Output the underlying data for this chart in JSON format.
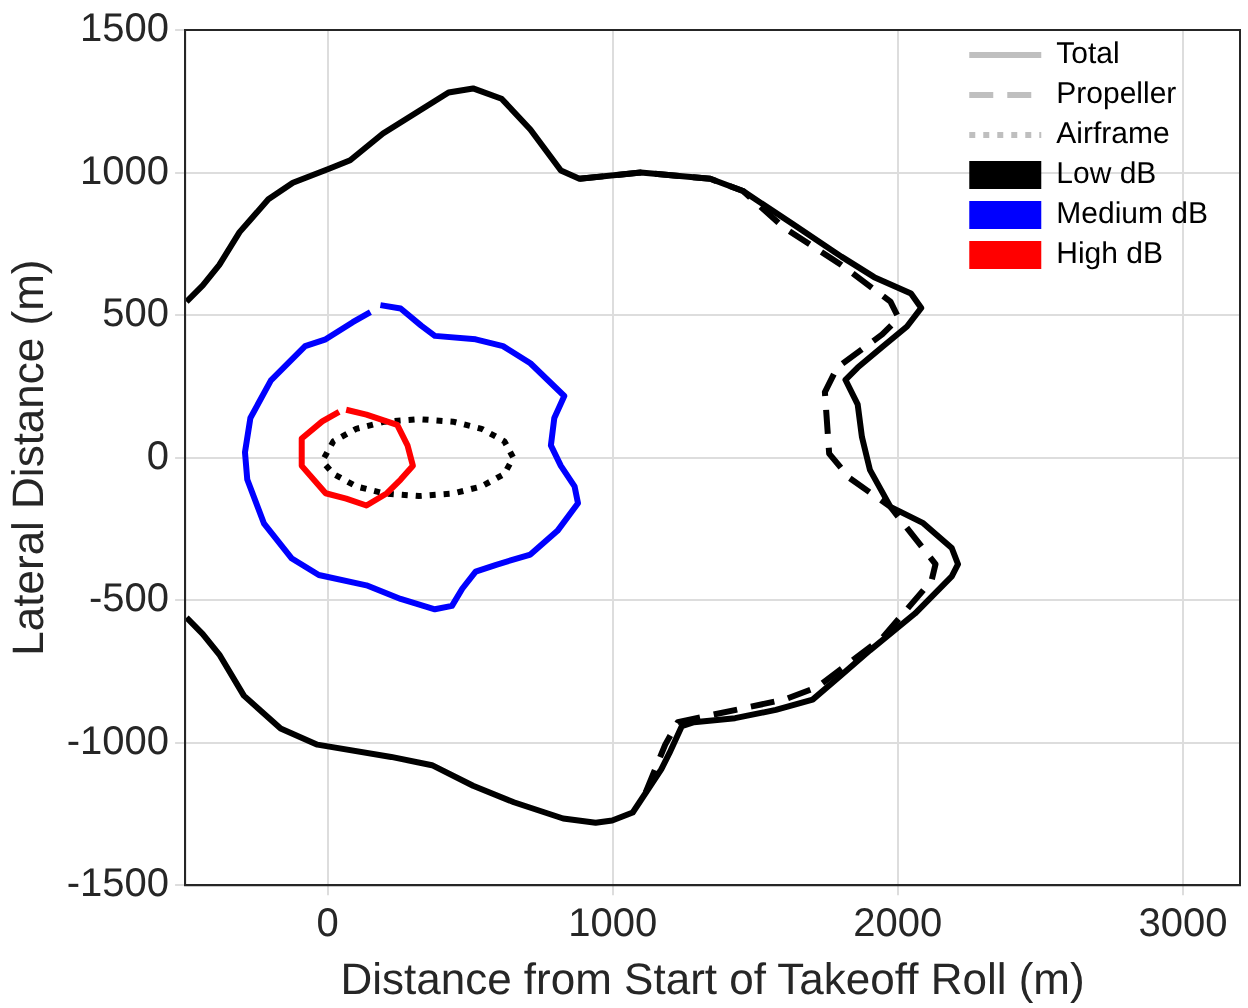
{
  "chart_data": {
    "type": "line",
    "xlabel": "Distance from Start of Takeoff Roll (m)",
    "ylabel": "Lateral Distance (m)",
    "xlim": [
      -500,
      3200
    ],
    "xticks": [
      0,
      1000,
      2000,
      3000
    ],
    "ylim": [
      -1500,
      1500
    ],
    "yticks": [
      -1500,
      -1000,
      -500,
      0,
      500,
      1000,
      1500
    ],
    "grid": true,
    "legend": "top right",
    "series": [
      {
        "color": "#000000",
        "line_style": "solid",
        "x": [
          -495,
          -438,
          -380,
          -309,
          -208,
          -122,
          7,
          79,
          194,
          309,
          424,
          510,
          610,
          711,
          818,
          883,
          1098,
          1342,
          1457,
          1630,
          1802,
          1917,
          2046,
          2082,
          2032,
          1945,
          1859,
          1816,
          1859,
          1874,
          1902,
          1974,
          2089,
          2189,
          2211,
          2189,
          2060,
          1902,
          1802,
          1701,
          1572,
          1429,
          1285,
          1242,
          1199,
          1170,
          1113,
          1070,
          998,
          940,
          826,
          653,
          510,
          366,
          223,
          -36,
          -165,
          -294,
          -380,
          -438,
          -495
        ],
        "values": [
          547,
          604,
          676,
          791,
          906,
          964,
          1014,
          1043,
          1137,
          1209,
          1281,
          1295,
          1259,
          1151,
          1007,
          978,
          1000,
          978,
          935,
          820,
          705,
          633,
          576,
          525,
          460,
          388,
          316,
          273,
          187,
          72,
          -43,
          -173,
          -230,
          -317,
          -374,
          -417,
          -547,
          -676,
          -763,
          -849,
          -885,
          -914,
          -928,
          -942,
          -1036,
          -1094,
          -1180,
          -1245,
          -1273,
          -1281,
          -1266,
          -1209,
          -1151,
          -1079,
          -1050,
          -1007,
          -950,
          -835,
          -691,
          -619,
          -561
        ]
      },
      {
        "color": "#000000",
        "line_style": "dashed",
        "x": [
          883,
          1098,
          1342,
          1457,
          1601,
          1802,
          1974,
          2003,
          1945,
          1787,
          1744,
          1759,
          1831,
          1974,
          2132,
          2118,
          1945,
          1716,
          1601,
          1228,
          1184,
          1113
        ],
        "values": [
          978,
          1000,
          978,
          935,
          806,
          676,
          547,
          489,
          432,
          316,
          230,
          14,
          -72,
          -173,
          -374,
          -432,
          -633,
          -806,
          -849,
          -928,
          -1007,
          -1180
        ]
      },
      {
        "color": "#0000ff",
        "line_style": "solid",
        "x": [
          185,
          256,
          328,
          376,
          519,
          615,
          711,
          830,
          795,
          783,
          818,
          866,
          878,
          806,
          711,
          591,
          519,
          472,
          436,
          376,
          256,
          136,
          -31,
          -127,
          -223,
          -282,
          -290,
          -271,
          -199,
          -79,
          -7,
          88,
          150
        ],
        "values": [
          535,
          523,
          463,
          427,
          415,
          391,
          331,
          216,
          139,
          43,
          -29,
          -101,
          -160,
          -257,
          -340,
          -376,
          -400,
          -460,
          -520,
          -532,
          -496,
          -448,
          -412,
          -353,
          -232,
          -77,
          19,
          139,
          271,
          391,
          415,
          475,
          510
        ]
      },
      {
        "color": "#ff0000",
        "line_style": "solid",
        "x": [
          65,
          136,
          244,
          280,
          299,
          256,
          208,
          136,
          65,
          -7,
          -91,
          -91,
          -19,
          40
        ],
        "values": [
          168,
          151,
          115,
          43,
          -29,
          -77,
          -125,
          -168,
          -144,
          -125,
          -29,
          67,
          127,
          160
        ]
      },
      {
        "color": "#000000",
        "line_style": "dotted",
        "x": [
          -12,
          20,
          100,
          200,
          320,
          440,
          540,
          620,
          651,
          620,
          540,
          440,
          320,
          200,
          100,
          20,
          -8
        ],
        "values": [
          0,
          57,
          101,
          126,
          135,
          126,
          101,
          57,
          0,
          -57,
          -101,
          -126,
          -135,
          -126,
          -101,
          -57,
          -25
        ]
      },
      {
        "name": "Total",
        "color": "#bfbfbf",
        "line_style": "solid"
      },
      {
        "name": "Propeller",
        "color": "#bfbfbf",
        "line_style": "dashed"
      },
      {
        "name": "Airframe",
        "color": "#bfbfbf",
        "line_style": "dotted"
      },
      {
        "name": "Low dB",
        "color": "#000000"
      },
      {
        "name": "Medium dB",
        "color": "#0000ff"
      },
      {
        "name": "High dB",
        "color": "#ff0000"
      }
    ]
  }
}
